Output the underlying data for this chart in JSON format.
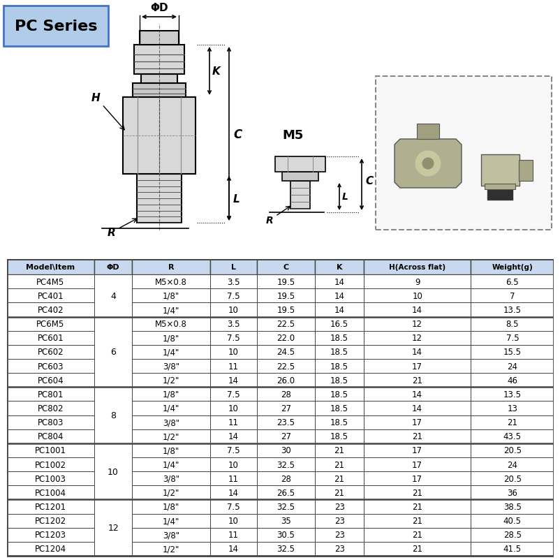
{
  "title": "PC Series",
  "header": [
    "Model\\Item",
    "ΦD",
    "R",
    "L",
    "C",
    "K",
    "H(Across flat)",
    "Weight(g)"
  ],
  "rows": [
    [
      "PC4M5",
      "",
      "M5×0.8",
      "3.5",
      "19.5",
      "14",
      "9",
      "6.5"
    ],
    [
      "PC401",
      "4",
      "1/8\"",
      "7.5",
      "19.5",
      "14",
      "10",
      "7"
    ],
    [
      "PC402",
      "",
      "1/4\"",
      "10",
      "19.5",
      "14",
      "14",
      "13.5"
    ],
    [
      "PC6M5",
      "",
      "M5×0.8",
      "3.5",
      "22.5",
      "16.5",
      "12",
      "8.5"
    ],
    [
      "PC601",
      "",
      "1/8\"",
      "7.5",
      "22.0",
      "18.5",
      "12",
      "7.5"
    ],
    [
      "PC602",
      "6",
      "1/4\"",
      "10",
      "24.5",
      "18.5",
      "14",
      "15.5"
    ],
    [
      "PC603",
      "",
      "3/8\"",
      "11",
      "22.5",
      "18.5",
      "17",
      "24"
    ],
    [
      "PC604",
      "",
      "1/2\"",
      "14",
      "26.0",
      "18.5",
      "21",
      "46"
    ],
    [
      "PC801",
      "",
      "1/8\"",
      "7.5",
      "28",
      "18.5",
      "14",
      "13.5"
    ],
    [
      "PC802",
      "8",
      "1/4\"",
      "10",
      "27",
      "18.5",
      "14",
      "13"
    ],
    [
      "PC803",
      "",
      "3/8\"",
      "11",
      "23.5",
      "18.5",
      "17",
      "21"
    ],
    [
      "PC804",
      "",
      "1/2\"",
      "14",
      "27",
      "18.5",
      "21",
      "43.5"
    ],
    [
      "PC1001",
      "",
      "1/8\"",
      "7.5",
      "30",
      "21",
      "17",
      "20.5"
    ],
    [
      "PC1002",
      "10",
      "1/4\"",
      "10",
      "32.5",
      "21",
      "17",
      "24"
    ],
    [
      "PC1003",
      "",
      "3/8\"",
      "11",
      "28",
      "21",
      "17",
      "20.5"
    ],
    [
      "PC1004",
      "",
      "1/2\"",
      "14",
      "26.5",
      "21",
      "21",
      "36"
    ],
    [
      "PC1201",
      "",
      "1/8\"",
      "7.5",
      "32.5",
      "23",
      "21",
      "38.5"
    ],
    [
      "PC1202",
      "12",
      "1/4\"",
      "10",
      "35",
      "23",
      "21",
      "40.5"
    ],
    [
      "PC1203",
      "",
      "3/8\"",
      "11",
      "30.5",
      "23",
      "21",
      "28.5"
    ],
    [
      "PC1204",
      "",
      "1/2\"",
      "14",
      "32.5",
      "23",
      "21",
      "41.5"
    ]
  ],
  "group_spans": [
    {
      "label": "4",
      "start": 0,
      "end": 2
    },
    {
      "label": "6",
      "start": 3,
      "end": 7
    },
    {
      "label": "8",
      "start": 8,
      "end": 11
    },
    {
      "label": "10",
      "start": 12,
      "end": 15
    },
    {
      "label": "12",
      "start": 16,
      "end": 19
    }
  ],
  "header_bg": "#c8d8ee",
  "row_bg": "#ffffff",
  "border_color": "#444444",
  "header_text_color": "#000000",
  "cell_text_color": "#000000",
  "title_bg": "#b0cce8",
  "title_border": "#4472c4",
  "fig_bg": "#ffffff",
  "diagram_line_color": "#000000",
  "fitting_fill": "#d8d8d8",
  "fitting_edge": "#000000"
}
